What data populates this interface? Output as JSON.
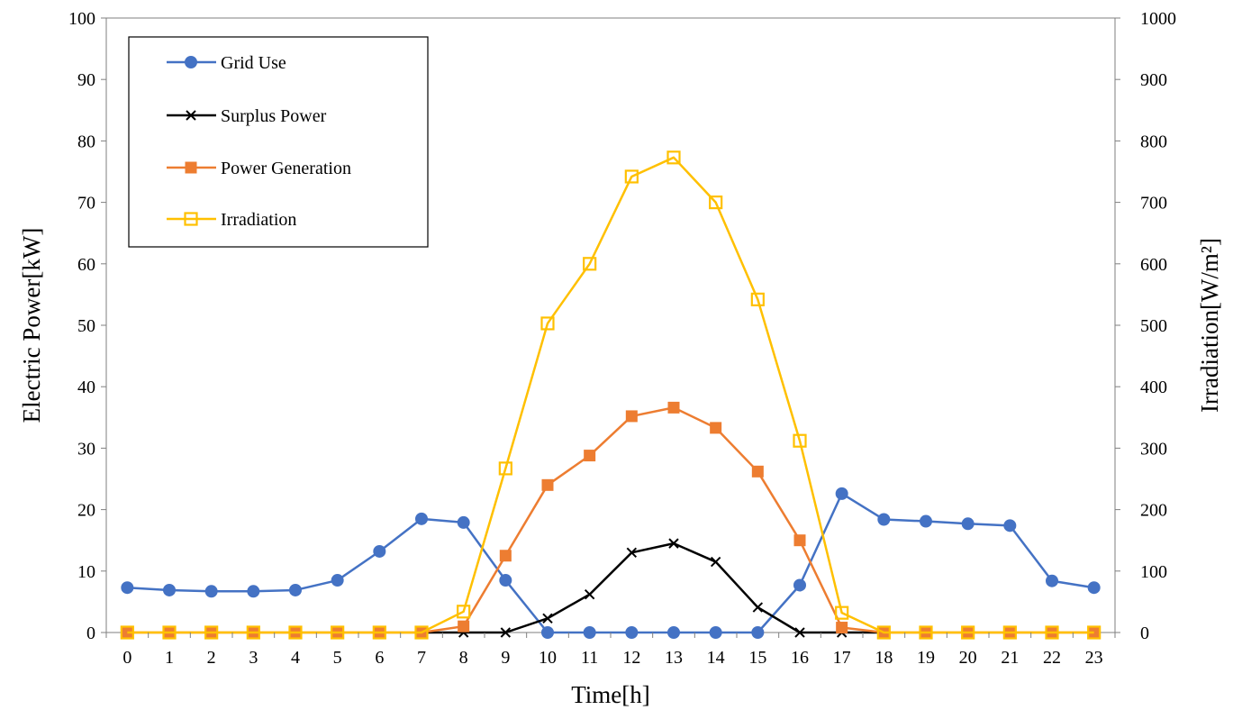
{
  "chart_data": {
    "type": "line",
    "title": "",
    "xlabel": "Time[h]",
    "ylabel": "Electric Power[kW]",
    "y2label": "Irradiation[W/m²]",
    "x": [
      0,
      1,
      2,
      3,
      4,
      5,
      6,
      7,
      8,
      9,
      10,
      11,
      12,
      13,
      14,
      15,
      16,
      17,
      18,
      19,
      20,
      21,
      22,
      23
    ],
    "ylim": [
      0,
      100
    ],
    "yticks": [
      0,
      10,
      20,
      30,
      40,
      50,
      60,
      70,
      80,
      90,
      100
    ],
    "y2lim": [
      0,
      1000
    ],
    "y2ticks": [
      0,
      100,
      200,
      300,
      400,
      500,
      600,
      700,
      800,
      900,
      1000
    ],
    "grid": false,
    "legend_position": "top-left",
    "series": [
      {
        "name": "Grid Use",
        "axis": "left",
        "color": "#4472C4",
        "marker": "circle",
        "values": [
          7.3,
          6.9,
          6.7,
          6.7,
          6.9,
          8.5,
          13.2,
          18.5,
          17.9,
          8.5,
          0,
          0,
          0,
          0,
          0,
          0,
          7.7,
          22.6,
          18.4,
          18.1,
          17.7,
          17.4,
          8.4,
          7.3
        ]
      },
      {
        "name": "Surplus Power",
        "axis": "left",
        "color": "#000000",
        "marker": "x",
        "start_index": 7,
        "values": [
          null,
          null,
          null,
          null,
          null,
          null,
          null,
          0,
          0,
          0,
          2.3,
          6.2,
          13.0,
          14.5,
          11.5,
          4.1,
          0,
          0,
          0,
          null,
          null,
          null,
          null,
          null
        ]
      },
      {
        "name": "Power Generation",
        "axis": "left",
        "color": "#ED7D31",
        "marker": "square-filled",
        "values": [
          0,
          0,
          0,
          0,
          0,
          0,
          0,
          0,
          1.0,
          12.5,
          24.0,
          28.8,
          35.2,
          36.6,
          33.3,
          26.2,
          15.0,
          0.8,
          0,
          0,
          0,
          0,
          0,
          0
        ]
      },
      {
        "name": "Irradiation",
        "axis": "right",
        "color": "#FFC000",
        "marker": "square-open",
        "values": [
          0,
          0,
          0,
          0,
          0,
          0,
          0,
          0,
          34,
          267,
          503,
          600,
          742,
          773,
          700,
          542,
          312,
          32,
          0,
          0,
          0,
          0,
          0,
          0
        ]
      }
    ]
  }
}
